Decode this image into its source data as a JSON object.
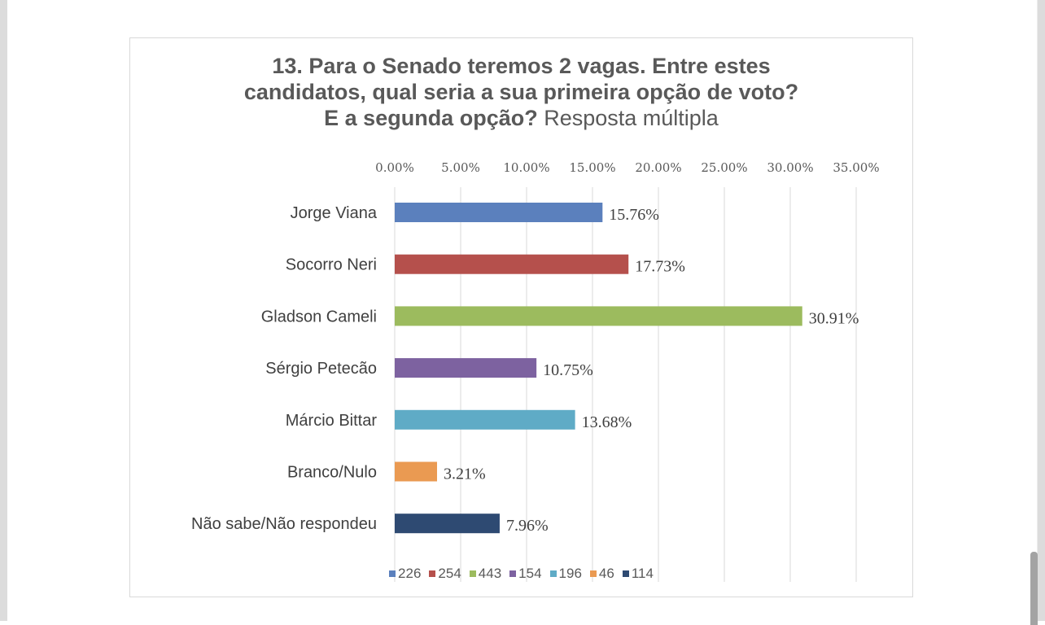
{
  "chart_data": {
    "type": "bar",
    "orientation": "horizontal",
    "title_bold": "13. Para o Senado teremos 2 vagas. Entre estes candidatos, qual seria a sua primeira opção de voto? E a segunda opção?",
    "title_line1": "13. Para o Senado teremos 2 vagas. Entre estes",
    "title_line2": "candidatos, qual seria a sua primeira opção de voto?",
    "title_line3_bold": "E a segunda opção?",
    "title_line3_normal": " Resposta múltipla",
    "categories": [
      "Jorge Viana",
      "Socorro Neri",
      "Gladson Cameli",
      "Sérgio Petecão",
      "Márcio Bittar",
      "Branco/Nulo",
      "Não sabe/Não respondeu"
    ],
    "values": [
      15.76,
      17.73,
      30.91,
      10.75,
      13.68,
      3.21,
      7.96
    ],
    "data_labels": [
      "15.76%",
      "17.73%",
      "30.91%",
      "10.75%",
      "13.68%",
      "3.21%",
      "7.96%"
    ],
    "colors": [
      "#5b80bd",
      "#b5504c",
      "#9cbb5e",
      "#7d62a0",
      "#5fabc6",
      "#ea9a52",
      "#2e4a72"
    ],
    "xlim": [
      0,
      35
    ],
    "xticks": [
      "0.00%",
      "5.00%",
      "10.00%",
      "15.00%",
      "20.00%",
      "25.00%",
      "30.00%",
      "35.00%"
    ],
    "grid": true,
    "legend_position": "bottom",
    "legend": [
      "226",
      "254",
      "443",
      "154",
      "196",
      "46",
      "114"
    ]
  }
}
